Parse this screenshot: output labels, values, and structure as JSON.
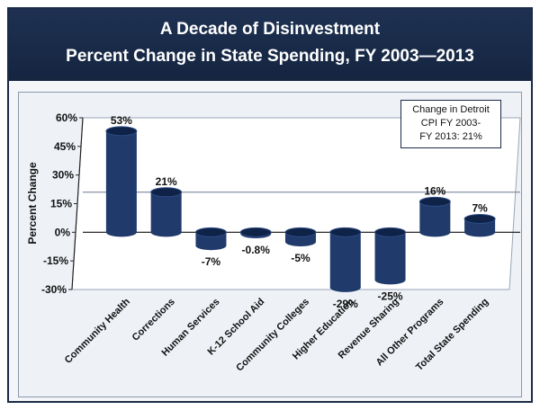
{
  "chart_data": {
    "type": "bar",
    "title": "A Decade of Disinvestment",
    "subtitle": "Percent Change in State Spending, FY 2003—2013",
    "ylabel": "Percent Change",
    "xlabel": "",
    "ylim": [
      -30,
      60
    ],
    "yticks": [
      -30,
      -15,
      0,
      15,
      30,
      45,
      60
    ],
    "ytick_labels": [
      "-30%",
      "-15%",
      "0%",
      "15%",
      "30%",
      "45%",
      "60%"
    ],
    "grid": false,
    "legend": "none",
    "categories": [
      "Community Health",
      "Corrections",
      "Human Services",
      "K-12 School Aid",
      "Community Colleges",
      "Higher Education",
      "Revenue Sharing",
      "All Other Programs",
      "Total State Spending"
    ],
    "values": [
      53,
      21,
      -7,
      -0.8,
      -5,
      -29,
      -25,
      16,
      7
    ],
    "data_labels": [
      "53%",
      "21%",
      "-7%",
      "-0.8%",
      "-5%",
      "-29%",
      "-25%",
      "16%",
      "7%"
    ],
    "bar_color": "#1f3a6b",
    "reference_line": 21,
    "annotation": {
      "line1": "Change in Detroit",
      "line2": "CPI FY 2003-",
      "line3": "FY 2013: 21%"
    }
  }
}
